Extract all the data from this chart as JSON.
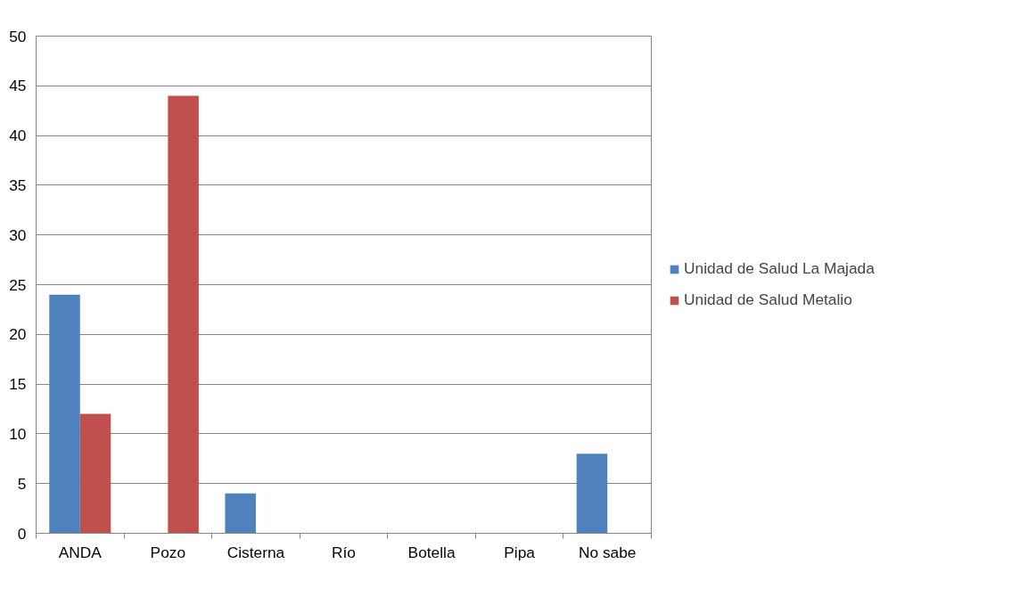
{
  "chart_data": {
    "type": "bar",
    "categories": [
      "ANDA",
      "Pozo",
      "Cisterna",
      "Río",
      "Botella",
      "Pipa",
      "No sabe"
    ],
    "series": [
      {
        "name": "Unidad de Salud La Majada",
        "color": "#4f81bd",
        "values": [
          24,
          0,
          4,
          0,
          0,
          0,
          8
        ]
      },
      {
        "name": "Unidad de Salud Metalio",
        "color": "#c0504d",
        "values": [
          12,
          44,
          0,
          0,
          0,
          0,
          0
        ]
      }
    ],
    "ylim": [
      0,
      50
    ],
    "yticks": [
      0,
      5,
      10,
      15,
      20,
      25,
      30,
      35,
      40,
      45,
      50
    ],
    "grid": "y",
    "legend": "right"
  }
}
